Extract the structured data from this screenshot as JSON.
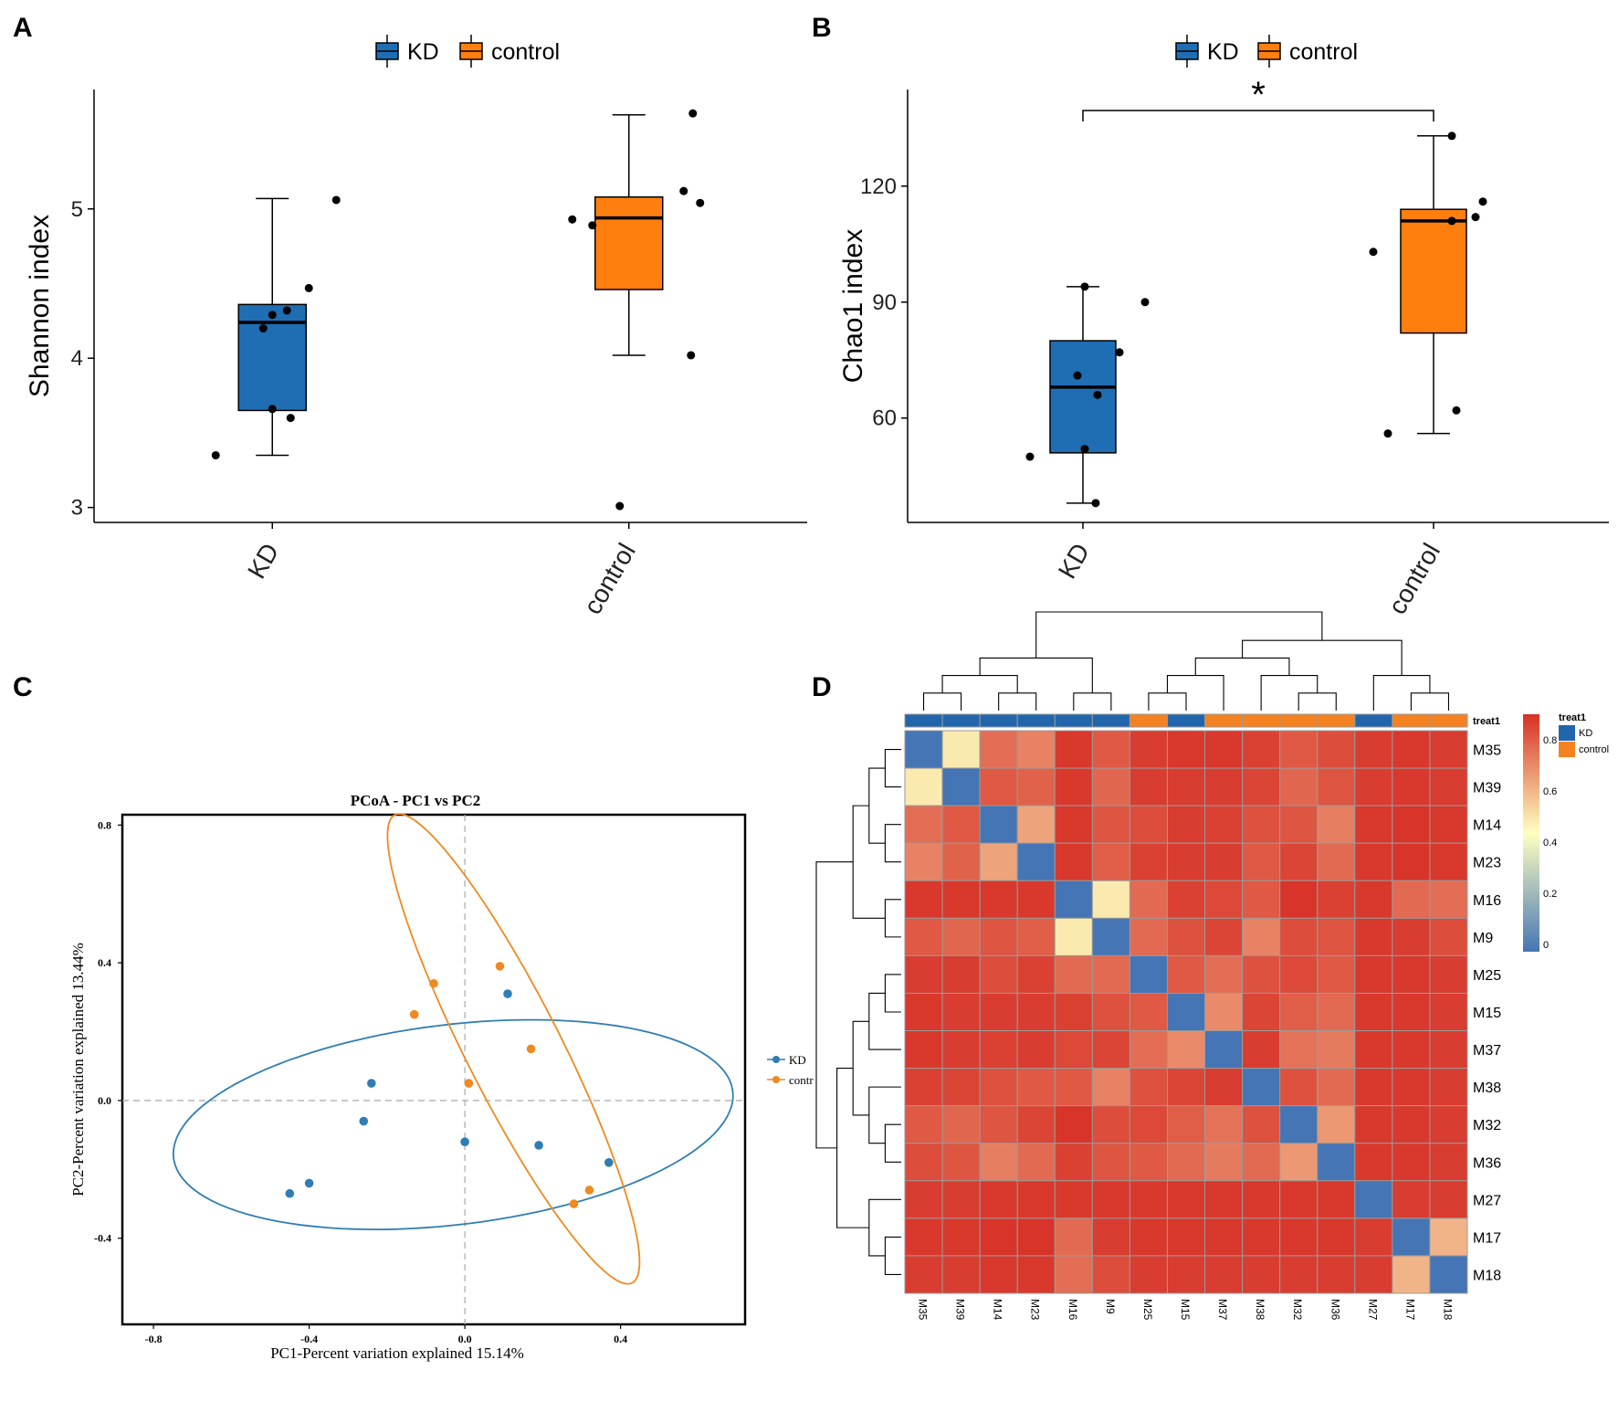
{
  "chart_data": [
    {
      "panel": "A",
      "type": "box",
      "legend": [
        "KD",
        "control"
      ],
      "ylabel": "Shannon index",
      "categories": [
        "KD",
        "control"
      ],
      "ylim": [
        2.9,
        5.8
      ],
      "yticks": [
        "3",
        "4",
        "5"
      ],
      "colors": {
        "KD": "#1f6eb4",
        "control": "#ff7f0e"
      },
      "boxes": [
        {
          "name": "KD",
          "min": 3.35,
          "q1": 3.65,
          "median": 4.24,
          "q3": 4.36,
          "max": 5.07,
          "points": [
            3.35,
            3.6,
            3.66,
            4.2,
            4.29,
            4.32,
            4.47,
            5.06
          ]
        },
        {
          "name": "control",
          "min": 4.02,
          "q1": 4.46,
          "median": 4.94,
          "q3": 5.08,
          "max": 5.63,
          "points": [
            3.01,
            4.02,
            4.89,
            4.93,
            5.04,
            5.12,
            5.64
          ]
        }
      ]
    },
    {
      "panel": "B",
      "type": "box",
      "legend": [
        "KD",
        "control"
      ],
      "ylabel": "Chao1 index",
      "categories": [
        "KD",
        "control"
      ],
      "ylim": [
        33,
        145
      ],
      "yticks": [
        "60",
        "90",
        "120"
      ],
      "significance": "*",
      "colors": {
        "KD": "#1f6eb4",
        "control": "#ff7f0e"
      },
      "boxes": [
        {
          "name": "KD",
          "min": 38,
          "q1": 51,
          "median": 68,
          "q3": 80,
          "max": 94,
          "points": [
            38,
            50,
            52,
            66,
            71,
            77,
            90,
            94
          ]
        },
        {
          "name": "control",
          "min": 56,
          "q1": 82,
          "median": 111,
          "q3": 114,
          "max": 133,
          "points": [
            56,
            62,
            103,
            111,
            112,
            116,
            133
          ]
        }
      ]
    },
    {
      "panel": "C",
      "type": "scatter",
      "title": "PCoA - PC1 vs PC2",
      "xlabel": "PC1-Percent variation explained 15.14%",
      "ylabel": "PC2-Percent variation explained 13.44%",
      "xlim": [
        -0.88,
        0.72
      ],
      "ylim": [
        -0.65,
        0.83
      ],
      "xticks": [
        "-0.8",
        "-0.4",
        "0.0",
        "0.4"
      ],
      "yticks": [
        "-0.4",
        "0.0",
        "0.4",
        "0.8"
      ],
      "legend": [
        "KD",
        "control"
      ],
      "legend_shown": [
        "KD",
        "contr"
      ],
      "colors": {
        "KD": "#2f7db3",
        "control": "#f0891f"
      },
      "series": [
        {
          "name": "KD",
          "x": [
            -0.45,
            -0.4,
            -0.26,
            -0.24,
            0.0,
            0.11,
            0.19,
            0.37
          ],
          "y": [
            -0.27,
            -0.24,
            -0.06,
            0.05,
            -0.12,
            0.31,
            -0.13,
            -0.18
          ]
        },
        {
          "name": "control",
          "x": [
            -0.13,
            -0.08,
            0.01,
            0.09,
            0.17,
            0.28,
            0.32
          ],
          "y": [
            0.25,
            0.34,
            0.05,
            0.39,
            0.15,
            -0.3,
            -0.26
          ]
        }
      ],
      "ellipses": [
        {
          "name": "KD",
          "cx": -0.03,
          "cy": -0.07,
          "rx": 0.725,
          "ry": 0.29,
          "angle_deg": 8
        },
        {
          "name": "control",
          "cx": 0.125,
          "cy": 0.15,
          "rx": 0.745,
          "ry": 0.125,
          "angle_deg": -66
        }
      ]
    },
    {
      "panel": "D",
      "type": "heatmap",
      "labels": [
        "M35",
        "M39",
        "M14",
        "M23",
        "M16",
        "M9",
        "M25",
        "M15",
        "M37",
        "M38",
        "M32",
        "M36",
        "M27",
        "M17",
        "M18"
      ],
      "groups": [
        "KD",
        "KD",
        "KD",
        "KD",
        "KD",
        "KD",
        "control",
        "KD",
        "control",
        "control",
        "control",
        "control",
        "KD",
        "control",
        "control"
      ],
      "annotation_title": "treat1",
      "annotation_legend": [
        "KD",
        "control"
      ],
      "annotation_colors": {
        "KD": "#2166ac",
        "control": "#f58220"
      },
      "colorbar_ticks": [
        "0",
        "0.2",
        "0.4",
        "0.6",
        "0.8"
      ],
      "matrix": [
        [
          0.0,
          0.55,
          0.85,
          0.8,
          0.98,
          0.9,
          0.97,
          0.98,
          0.98,
          0.96,
          0.9,
          0.93,
          0.97,
          0.98,
          0.97
        ],
        [
          0.55,
          0.0,
          0.9,
          0.88,
          0.98,
          0.87,
          0.97,
          0.97,
          0.97,
          0.95,
          0.87,
          0.91,
          0.97,
          0.98,
          0.97
        ],
        [
          0.85,
          0.9,
          0.0,
          0.72,
          0.98,
          0.91,
          0.93,
          0.97,
          0.96,
          0.92,
          0.91,
          0.81,
          0.98,
          0.99,
          0.98
        ],
        [
          0.8,
          0.88,
          0.72,
          0.0,
          0.98,
          0.89,
          0.96,
          0.97,
          0.97,
          0.9,
          0.95,
          0.86,
          0.98,
          0.99,
          0.98
        ],
        [
          0.98,
          0.98,
          0.98,
          0.98,
          0.0,
          0.55,
          0.86,
          0.96,
          0.94,
          0.9,
          0.99,
          0.96,
          0.98,
          0.86,
          0.85
        ],
        [
          0.9,
          0.87,
          0.91,
          0.89,
          0.55,
          0.0,
          0.86,
          0.92,
          0.95,
          0.8,
          0.93,
          0.91,
          0.98,
          0.97,
          0.93
        ],
        [
          0.97,
          0.97,
          0.93,
          0.96,
          0.86,
          0.86,
          0.0,
          0.9,
          0.85,
          0.92,
          0.94,
          0.9,
          0.98,
          0.98,
          0.97
        ],
        [
          0.98,
          0.97,
          0.97,
          0.97,
          0.96,
          0.92,
          0.9,
          0.0,
          0.78,
          0.95,
          0.89,
          0.86,
          0.98,
          0.98,
          0.97
        ],
        [
          0.98,
          0.97,
          0.96,
          0.97,
          0.94,
          0.95,
          0.85,
          0.78,
          0.0,
          0.97,
          0.84,
          0.82,
          0.98,
          0.98,
          0.97
        ],
        [
          0.96,
          0.95,
          0.92,
          0.9,
          0.9,
          0.8,
          0.92,
          0.95,
          0.97,
          0.0,
          0.92,
          0.86,
          0.98,
          0.98,
          0.97
        ],
        [
          0.9,
          0.87,
          0.91,
          0.95,
          0.99,
          0.93,
          0.94,
          0.89,
          0.84,
          0.92,
          0.0,
          0.75,
          0.98,
          0.98,
          0.97
        ],
        [
          0.93,
          0.91,
          0.81,
          0.86,
          0.96,
          0.91,
          0.9,
          0.86,
          0.82,
          0.86,
          0.75,
          0.0,
          0.98,
          0.98,
          0.97
        ],
        [
          0.97,
          0.97,
          0.98,
          0.98,
          0.98,
          0.98,
          0.98,
          0.98,
          0.98,
          0.98,
          0.98,
          0.98,
          0.0,
          0.97,
          0.97
        ],
        [
          0.98,
          0.98,
          0.99,
          0.99,
          0.86,
          0.97,
          0.98,
          0.98,
          0.98,
          0.98,
          0.98,
          0.98,
          0.97,
          0.0,
          0.68
        ],
        [
          0.97,
          0.97,
          0.98,
          0.98,
          0.85,
          0.93,
          0.97,
          0.97,
          0.97,
          0.97,
          0.97,
          0.97,
          0.97,
          0.68,
          0.0
        ]
      ]
    }
  ],
  "panel_letters": [
    "A",
    "B",
    "C",
    "D"
  ],
  "colors": {
    "axis": "#000000",
    "grid_dash": "#b0b0b0",
    "heat_low": "#4575b4",
    "heat_mid": "#ffffbf",
    "heat_high": "#d73027",
    "cell_border": "#9a9a9a"
  }
}
